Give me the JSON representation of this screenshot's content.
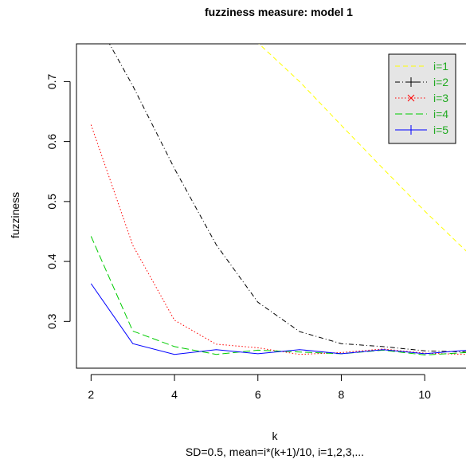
{
  "chart_data": {
    "type": "line",
    "title": "fuzziness measure: model 1",
    "xlabel": "k",
    "subtitle": "SD=0.5, mean=i*(k+1)/10, i=1,2,3,...",
    "ylabel": "fuzziness",
    "xlim": [
      1.65,
      11.2
    ],
    "ylim": [
      0.222,
      0.763
    ],
    "xticks": [
      2,
      4,
      6,
      8,
      10
    ],
    "xtick_labels": [
      "2",
      "4",
      "6",
      "8",
      "10"
    ],
    "yticks": [
      0.3,
      0.4,
      0.5,
      0.6,
      0.7
    ],
    "ytick_labels": [
      "0.3",
      "0.4",
      "0.5",
      "0.6",
      "0.7"
    ],
    "legend_position": "top-right",
    "series": [
      {
        "name": "i=1",
        "color": "#ffff00",
        "dash": "6,4",
        "marker": "",
        "x": [
          5.95,
          7,
          8,
          9,
          10,
          11
        ],
        "y": [
          0.768,
          0.7,
          0.627,
          0.555,
          0.484,
          0.417
        ]
      },
      {
        "name": "i=2",
        "color": "#000000",
        "dash": "6,3,1,3",
        "marker": "+",
        "x": [
          2.4,
          3,
          4,
          5,
          6,
          7,
          8,
          9,
          10,
          11
        ],
        "y": [
          0.768,
          0.693,
          0.555,
          0.428,
          0.332,
          0.283,
          0.263,
          0.258,
          0.251,
          0.249
        ]
      },
      {
        "name": "i=3",
        "color": "#ff0000",
        "dash": "1.5,2.5",
        "marker": "x",
        "x": [
          2,
          3,
          4,
          5,
          6,
          7,
          8,
          9,
          10,
          11
        ],
        "y": [
          0.628,
          0.427,
          0.302,
          0.262,
          0.256,
          0.245,
          0.248,
          0.254,
          0.247,
          0.245
        ]
      },
      {
        "name": "i=4",
        "color": "#00cc00",
        "dash": "9,4",
        "marker": "",
        "x": [
          2,
          3,
          4,
          5,
          6,
          7,
          8,
          9,
          10,
          11
        ],
        "y": [
          0.442,
          0.284,
          0.258,
          0.245,
          0.252,
          0.249,
          0.246,
          0.252,
          0.244,
          0.248
        ]
      },
      {
        "name": "i=5",
        "color": "#0000ff",
        "dash": "",
        "marker": "+",
        "x": [
          2,
          3,
          4,
          5,
          6,
          7,
          8,
          9,
          10,
          11
        ],
        "y": [
          0.363,
          0.263,
          0.245,
          0.253,
          0.246,
          0.253,
          0.246,
          0.253,
          0.246,
          0.252
        ]
      }
    ],
    "colors": {
      "legend_background": "#e5e5e5",
      "legend_text": "#22aa22"
    }
  }
}
